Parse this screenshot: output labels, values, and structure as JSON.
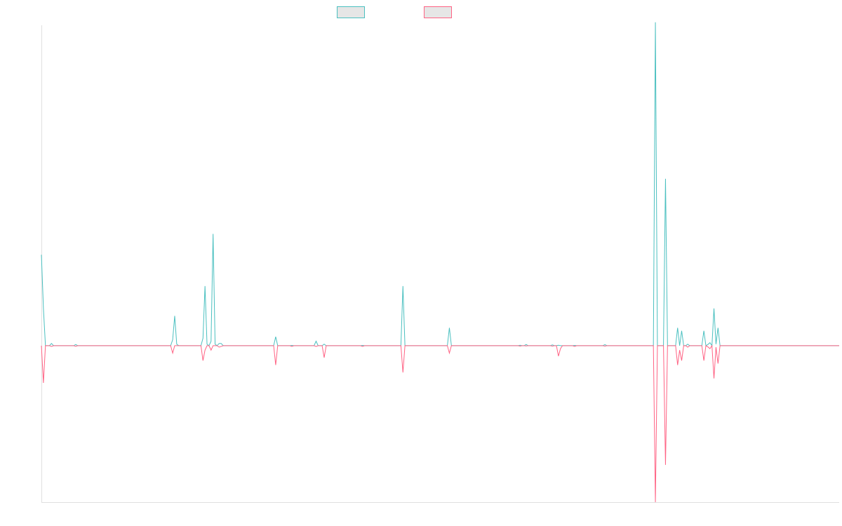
{
  "chart_data": {
    "type": "line",
    "title": "",
    "xlabel": "",
    "ylabel": "",
    "x_count": 396,
    "ylim": [
      -1.05,
      2.15
    ],
    "grid": false,
    "legend": {
      "placement": "top-center",
      "entries": [
        {
          "name": "",
          "color": "#4bc0c0",
          "fill": "#e6e6e6"
        },
        {
          "name": "",
          "color": "#ff6384",
          "fill": "#e6e6e6"
        }
      ]
    },
    "series": [
      {
        "name": "",
        "color": "#4bc0c0",
        "baseline": 0,
        "points": [
          [
            0,
            0.61
          ],
          [
            1,
            0.25
          ],
          [
            2,
            0
          ],
          [
            4,
            0
          ],
          [
            5,
            0.015
          ],
          [
            6,
            0
          ],
          [
            16,
            0
          ],
          [
            17,
            0.008
          ],
          [
            18,
            0
          ],
          [
            64,
            0
          ],
          [
            65,
            0.04
          ],
          [
            66,
            0.2
          ],
          [
            67,
            0.01
          ],
          [
            68,
            0
          ],
          [
            79,
            0
          ],
          [
            80,
            0.05
          ],
          [
            81,
            0.4
          ],
          [
            82,
            0.01
          ],
          [
            83,
            0
          ],
          [
            84,
            0.03
          ],
          [
            85,
            0.75
          ],
          [
            86,
            0.01
          ],
          [
            87,
            0
          ],
          [
            88,
            0.015
          ],
          [
            89,
            0.015
          ],
          [
            90,
            0
          ],
          [
            115,
            0
          ],
          [
            116,
            0.06
          ],
          [
            117,
            0
          ],
          [
            123,
            0
          ],
          [
            124,
            0.002
          ],
          [
            125,
            0
          ],
          [
            135,
            0
          ],
          [
            136,
            0.03
          ],
          [
            137,
            0
          ],
          [
            139,
            0
          ],
          [
            140,
            0.01
          ],
          [
            141,
            0
          ],
          [
            158,
            0
          ],
          [
            159,
            0.002
          ],
          [
            160,
            0
          ],
          [
            178,
            0
          ],
          [
            179,
            0.4
          ],
          [
            180,
            0
          ],
          [
            201,
            0
          ],
          [
            202,
            0.12
          ],
          [
            203,
            0
          ],
          [
            236,
            0
          ],
          [
            237,
            0.003
          ],
          [
            238,
            0
          ],
          [
            239,
            0
          ],
          [
            240,
            0.008
          ],
          [
            241,
            0
          ],
          [
            252,
            0
          ],
          [
            253,
            0.005
          ],
          [
            254,
            0
          ],
          [
            255,
            0
          ],
          [
            256,
            0.003
          ],
          [
            257,
            0
          ],
          [
            263,
            0
          ],
          [
            264,
            0.002
          ],
          [
            265,
            0
          ],
          [
            278,
            0
          ],
          [
            279,
            0.007
          ],
          [
            280,
            0
          ],
          [
            303,
            0
          ],
          [
            304,
            2.17
          ],
          [
            305,
            0
          ],
          [
            308,
            0
          ],
          [
            309,
            1.12
          ],
          [
            310,
            0
          ],
          [
            314,
            0
          ],
          [
            315,
            0.12
          ],
          [
            316,
            0
          ],
          [
            317,
            0.1
          ],
          [
            318,
            0
          ],
          [
            319,
            0
          ],
          [
            320,
            0.01
          ],
          [
            321,
            0
          ],
          [
            327,
            0
          ],
          [
            328,
            0.1
          ],
          [
            329,
            0
          ],
          [
            330,
            0.008
          ],
          [
            331,
            0.02
          ],
          [
            332,
            0
          ],
          [
            333,
            0.25
          ],
          [
            334,
            0.01
          ],
          [
            335,
            0.12
          ],
          [
            336,
            0
          ],
          [
            395,
            0
          ]
        ]
      },
      {
        "name": "",
        "color": "#ff6384",
        "baseline": 0,
        "points": [
          [
            0,
            0
          ],
          [
            1,
            -0.25
          ],
          [
            2,
            0
          ],
          [
            4,
            0
          ],
          [
            5,
            -0.005
          ],
          [
            6,
            0
          ],
          [
            16,
            0
          ],
          [
            17,
            -0.004
          ],
          [
            18,
            0
          ],
          [
            64,
            0
          ],
          [
            65,
            -0.05
          ],
          [
            66,
            0
          ],
          [
            67,
            0
          ],
          [
            79,
            0
          ],
          [
            80,
            -0.1
          ],
          [
            81,
            -0.03
          ],
          [
            82,
            0
          ],
          [
            83,
            0
          ],
          [
            84,
            -0.03
          ],
          [
            85,
            0
          ],
          [
            86,
            0
          ],
          [
            87,
            0
          ],
          [
            88,
            -0.01
          ],
          [
            89,
            -0.005
          ],
          [
            90,
            0
          ],
          [
            115,
            0
          ],
          [
            116,
            -0.13
          ],
          [
            117,
            0
          ],
          [
            123,
            0
          ],
          [
            124,
            -0.005
          ],
          [
            125,
            0
          ],
          [
            135,
            0
          ],
          [
            136,
            -0.005
          ],
          [
            137,
            0
          ],
          [
            139,
            0
          ],
          [
            140,
            -0.08
          ],
          [
            141,
            0
          ],
          [
            158,
            0
          ],
          [
            159,
            -0.005
          ],
          [
            160,
            0
          ],
          [
            178,
            0
          ],
          [
            179,
            -0.18
          ],
          [
            180,
            0
          ],
          [
            201,
            0
          ],
          [
            202,
            -0.05
          ],
          [
            203,
            0
          ],
          [
            236,
            0
          ],
          [
            237,
            -0.003
          ],
          [
            238,
            0
          ],
          [
            239,
            0
          ],
          [
            240,
            -0.002
          ],
          [
            241,
            0
          ],
          [
            252,
            0
          ],
          [
            253,
            -0.003
          ],
          [
            254,
            0
          ],
          [
            255,
            0
          ],
          [
            256,
            -0.07
          ],
          [
            257,
            -0.02
          ],
          [
            258,
            0
          ],
          [
            263,
            0
          ],
          [
            264,
            -0.005
          ],
          [
            265,
            0
          ],
          [
            278,
            0
          ],
          [
            279,
            -0.003
          ],
          [
            280,
            0
          ],
          [
            303,
            0
          ],
          [
            304,
            -1.05
          ],
          [
            305,
            0
          ],
          [
            308,
            0
          ],
          [
            309,
            -0.8
          ],
          [
            310,
            0
          ],
          [
            314,
            0
          ],
          [
            315,
            -0.13
          ],
          [
            316,
            -0.03
          ],
          [
            317,
            -0.1
          ],
          [
            318,
            0
          ],
          [
            319,
            0
          ],
          [
            320,
            -0.01
          ],
          [
            321,
            0
          ],
          [
            327,
            0
          ],
          [
            328,
            -0.1
          ],
          [
            329,
            0
          ],
          [
            330,
            -0.008
          ],
          [
            331,
            -0.02
          ],
          [
            332,
            0
          ],
          [
            333,
            -0.22
          ],
          [
            334,
            -0.01
          ],
          [
            335,
            -0.12
          ],
          [
            336,
            0
          ],
          [
            395,
            0
          ]
        ]
      }
    ]
  }
}
